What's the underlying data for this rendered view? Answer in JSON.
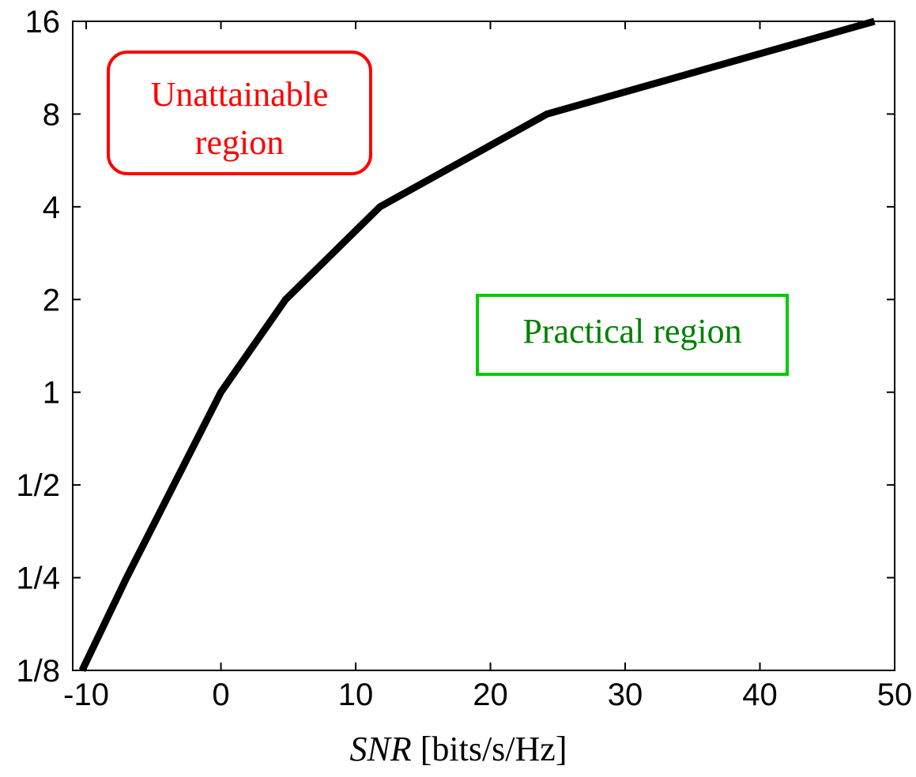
{
  "chart_data": {
    "type": "line",
    "title": "",
    "xlabel_italic": "SNR",
    "xlabel_rest": " [bits/s/Hz]",
    "ylabel": "",
    "x_ticks": [
      -10,
      0,
      10,
      20,
      30,
      40,
      50
    ],
    "x_tick_labels": [
      "-10",
      "0",
      "10",
      "20",
      "30",
      "40",
      "50"
    ],
    "xlim": [
      -11,
      50
    ],
    "y_scale": "log2",
    "y_ticks": [
      0.125,
      0.25,
      0.5,
      1,
      2,
      4,
      8,
      16
    ],
    "y_tick_labels": [
      "1/8",
      "1/4",
      "1/2",
      "1",
      "2",
      "4",
      "8",
      "16"
    ],
    "ylim": [
      0.125,
      16
    ],
    "grid": false,
    "series": [
      {
        "x": [
          -10.3,
          -7,
          -3.5,
          0,
          4.8,
          11.8,
          24.2,
          48.5
        ],
        "y": [
          0.125,
          0.25,
          0.5,
          1,
          2,
          4,
          8,
          16
        ],
        "color": "#000000"
      }
    ],
    "annotations": [
      {
        "lines": [
          "Unattainable",
          "region"
        ],
        "color": "#ff0000",
        "border_color": "#ff0000",
        "rounded": true
      },
      {
        "lines": [
          "Practical region"
        ],
        "color": "#008000",
        "border_color": "#00cc00",
        "rounded": false
      }
    ]
  }
}
